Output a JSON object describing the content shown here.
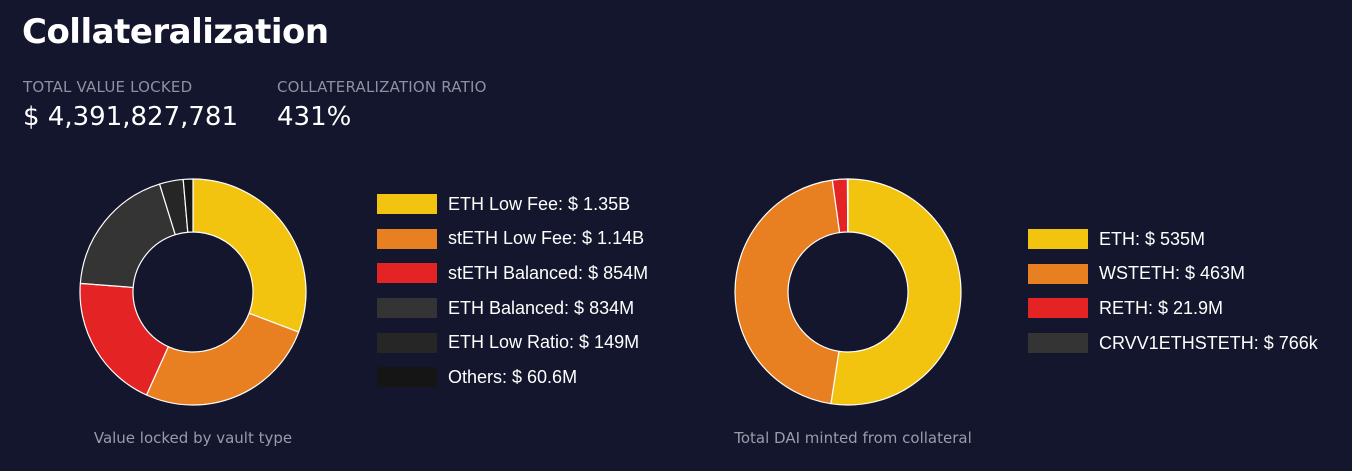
{
  "page": {
    "title": "Collateralization"
  },
  "stats": [
    {
      "label": "TOTAL VALUE LOCKED",
      "value": "$ 4,391,827,781"
    },
    {
      "label": "COLLATERALIZATION RATIO",
      "value": "431%"
    }
  ],
  "chart_data": [
    {
      "type": "pie",
      "style": "donut",
      "caption": "Value locked by vault type",
      "legend_position": "right",
      "slices": [
        {
          "label": "ETH Low Fee: $ 1.35B",
          "name": "ETH Low Fee",
          "value": 1350000000,
          "color": "#f2c40f"
        },
        {
          "label": "stETH Low Fee: $ 1.14B",
          "name": "stETH Low Fee",
          "value": 1140000000,
          "color": "#e88022"
        },
        {
          "label": "stETH Balanced: $ 854M",
          "name": "stETH Balanced",
          "value": 854000000,
          "color": "#e42424"
        },
        {
          "label": "ETH Balanced: $ 834M",
          "name": "ETH Balanced",
          "value": 834000000,
          "color": "#343434"
        },
        {
          "label": "ETH Low Ratio: $ 149M",
          "name": "ETH Low Ratio",
          "value": 149000000,
          "color": "#262626"
        },
        {
          "label": "Others: $ 60.6M",
          "name": "Others",
          "value": 60600000,
          "color": "#151515"
        }
      ]
    },
    {
      "type": "pie",
      "style": "donut",
      "caption": "Total DAI minted from collateral",
      "legend_position": "right",
      "slices": [
        {
          "label": "ETH: $ 535M",
          "name": "ETH",
          "value": 535000000,
          "color": "#f2c40f"
        },
        {
          "label": "WSTETH: $ 463M",
          "name": "WSTETH",
          "value": 463000000,
          "color": "#e88022"
        },
        {
          "label": "RETH: $ 21.9M",
          "name": "RETH",
          "value": 21900000,
          "color": "#e42424"
        },
        {
          "label": "CRVV1ETHSTETH: $ 766k",
          "name": "CRVV1ETHSTETH",
          "value": 766000,
          "color": "#343434"
        }
      ]
    }
  ]
}
